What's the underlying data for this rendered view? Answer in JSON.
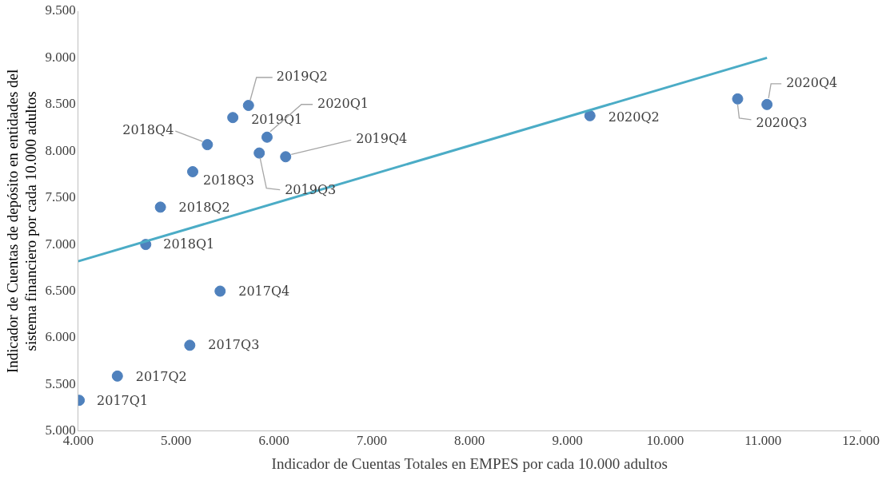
{
  "chart_data": {
    "type": "scatter",
    "xlabel": "Indicador de Cuentas Totales en EMPES por cada 10.000 adultos",
    "ylabel": "Indicador de Cuentas de depósito en entidades del sistema financiero por cada 10.000 adultos",
    "xlim": [
      4000,
      12000
    ],
    "xticks": [
      {
        "value": 4000,
        "label": "4.000"
      },
      {
        "value": 5000,
        "label": "5.000"
      },
      {
        "value": 6000,
        "label": "6.000"
      },
      {
        "value": 7000,
        "label": "7.000"
      },
      {
        "value": 8000,
        "label": "8.000"
      },
      {
        "value": 9000,
        "label": "9.000"
      },
      {
        "value": 10000,
        "label": "10.000"
      },
      {
        "value": 11000,
        "label": "11.000"
      },
      {
        "value": 12000,
        "label": "12.000"
      }
    ],
    "ylim": [
      5000,
      9500
    ],
    "yticks": [
      {
        "value": 5000,
        "label": "5.000"
      },
      {
        "value": 5500,
        "label": "5.500"
      },
      {
        "value": 6000,
        "label": "6.000"
      },
      {
        "value": 6500,
        "label": "6.500"
      },
      {
        "value": 7000,
        "label": "7.000"
      },
      {
        "value": 7500,
        "label": "7.500"
      },
      {
        "value": 8000,
        "label": "8.000"
      },
      {
        "value": 8500,
        "label": "8.500"
      },
      {
        "value": 9000,
        "label": "9.000"
      },
      {
        "value": 9500,
        "label": "9.500"
      }
    ],
    "grid": false,
    "legend": false,
    "marker": "circle",
    "series": [
      {
        "color": "#4f81bd",
        "x": [
          4010,
          4400,
          5140,
          5450,
          4690,
          4840,
          5170,
          5320,
          5580,
          5740,
          5850,
          6120,
          5930,
          9230,
          10740,
          11040
        ],
        "values": [
          5330,
          5590,
          5920,
          6500,
          7000,
          7400,
          7780,
          8070,
          8360,
          8490,
          7980,
          7940,
          8150,
          8380,
          8560,
          8500
        ]
      },
      {
        "type": "line",
        "marker": "none",
        "color": "#4bacc6",
        "x": [
          4000,
          11040
        ],
        "values": [
          6820,
          9000
        ]
      }
    ],
    "annotations": [
      {
        "text": "2017Q1",
        "x": 4010,
        "y": 5330
      },
      {
        "text": "2017Q2",
        "x": 4400,
        "y": 5590
      },
      {
        "text": "2017Q3",
        "x": 5140,
        "y": 5920
      },
      {
        "text": "2017Q4",
        "x": 5450,
        "y": 6500
      },
      {
        "text": "2018Q1",
        "x": 4690,
        "y": 7000
      },
      {
        "text": "2018Q2",
        "x": 4840,
        "y": 7400
      },
      {
        "text": "2018Q3",
        "x": 5170,
        "y": 7780
      },
      {
        "text": "2018Q4",
        "x": 5320,
        "y": 8070
      },
      {
        "text": "2019Q1",
        "x": 5580,
        "y": 8360
      },
      {
        "text": "2019Q2",
        "x": 5740,
        "y": 8490
      },
      {
        "text": "2019Q3",
        "x": 5850,
        "y": 7980
      },
      {
        "text": "2019Q4",
        "x": 6120,
        "y": 7940
      },
      {
        "text": "2020Q1",
        "x": 5930,
        "y": 8150
      },
      {
        "text": "2020Q2",
        "x": 9230,
        "y": 8380
      },
      {
        "text": "2020Q3",
        "x": 10740,
        "y": 8560
      },
      {
        "text": "2020Q4",
        "x": 11040,
        "y": 8500
      }
    ]
  }
}
